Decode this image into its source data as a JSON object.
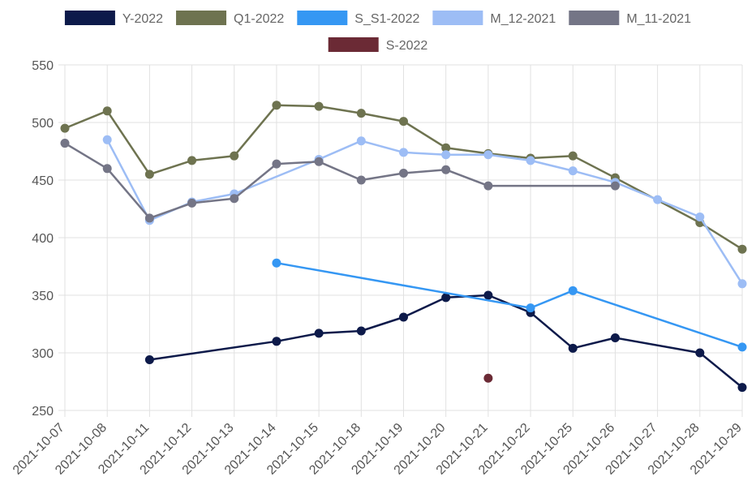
{
  "chart_data": {
    "type": "line",
    "x": [
      "2021-10-07",
      "2021-10-08",
      "2021-10-11",
      "2021-10-12",
      "2021-10-13",
      "2021-10-14",
      "2021-10-15",
      "2021-10-18",
      "2021-10-19",
      "2021-10-20",
      "2021-10-21",
      "2021-10-22",
      "2021-10-25",
      "2021-10-26",
      "2021-10-27",
      "2021-10-28",
      "2021-10-29"
    ],
    "ylim": [
      250,
      550
    ],
    "yticks": [
      250,
      300,
      350,
      400,
      450,
      500,
      550
    ],
    "grid": true,
    "legend_position": "top",
    "series": [
      {
        "name": "Y-2022",
        "color": "#0d1a4a",
        "values": [
          null,
          null,
          294,
          null,
          null,
          310,
          317,
          319,
          331,
          348,
          350,
          335,
          304,
          313,
          null,
          300,
          270
        ]
      },
      {
        "name": "Q1-2022",
        "color": "#6e7350",
        "values": [
          495,
          510,
          455,
          467,
          471,
          515,
          514,
          508,
          501,
          478,
          473,
          469,
          471,
          452,
          null,
          413,
          390
        ]
      },
      {
        "name": "S_S1-2022",
        "color": "#3597f3",
        "values": [
          null,
          null,
          null,
          null,
          null,
          378,
          null,
          null,
          null,
          null,
          null,
          339,
          354,
          null,
          null,
          null,
          305
        ]
      },
      {
        "name": "M_12-2021",
        "color": "#9dbdf5",
        "values": [
          null,
          485,
          415,
          431,
          438,
          null,
          468,
          484,
          474,
          472,
          472,
          467,
          458,
          448,
          433,
          418,
          360
        ]
      },
      {
        "name": "M_11-2021",
        "color": "#747586",
        "values": [
          482,
          460,
          417,
          430,
          434,
          464,
          466,
          450,
          456,
          459,
          445,
          null,
          null,
          445,
          null,
          null,
          null
        ]
      },
      {
        "name": "S-2022",
        "color": "#6b2a35",
        "values": [
          null,
          null,
          null,
          null,
          null,
          null,
          null,
          null,
          null,
          null,
          278,
          null,
          null,
          null,
          null,
          null,
          null
        ]
      }
    ]
  }
}
